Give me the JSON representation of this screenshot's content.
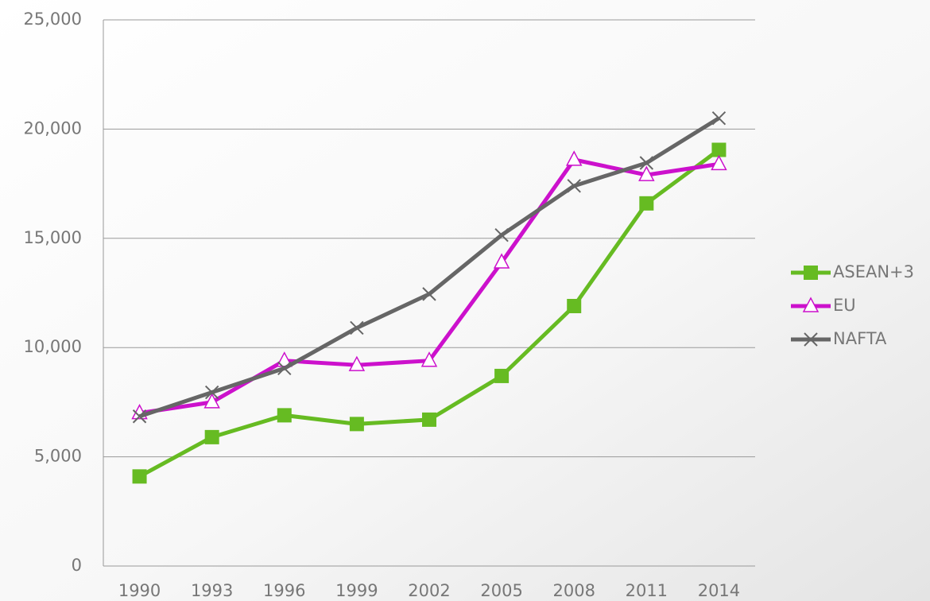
{
  "chart_data": {
    "type": "line",
    "categories": [
      "1990",
      "1993",
      "1996",
      "1999",
      "2002",
      "2005",
      "2008",
      "2011",
      "2014"
    ],
    "series": [
      {
        "name": "ASEAN+3",
        "color": "#66bb22",
        "marker": "square",
        "values": [
          4100,
          5900,
          6900,
          6500,
          6700,
          8700,
          11900,
          16600,
          19050
        ]
      },
      {
        "name": "EU",
        "color": "#cc11cc",
        "marker": "triangle",
        "values": [
          7000,
          7500,
          9400,
          9200,
          9400,
          13900,
          18600,
          17900,
          18400
        ]
      },
      {
        "name": "NAFTA",
        "color": "#666666",
        "marker": "x",
        "values": [
          6850,
          7950,
          9050,
          10900,
          12450,
          15150,
          17400,
          18450,
          20500
        ]
      }
    ],
    "ylim": [
      0,
      25000
    ],
    "yticks": [
      {
        "value": 0,
        "label": "0"
      },
      {
        "value": 5000,
        "label": "5,000"
      },
      {
        "value": 10000,
        "label": "10,000"
      },
      {
        "value": 15000,
        "label": "15,000"
      },
      {
        "value": 20000,
        "label": "20,000"
      },
      {
        "value": 25000,
        "label": "25,000"
      }
    ],
    "grid": true,
    "legend": "right"
  }
}
